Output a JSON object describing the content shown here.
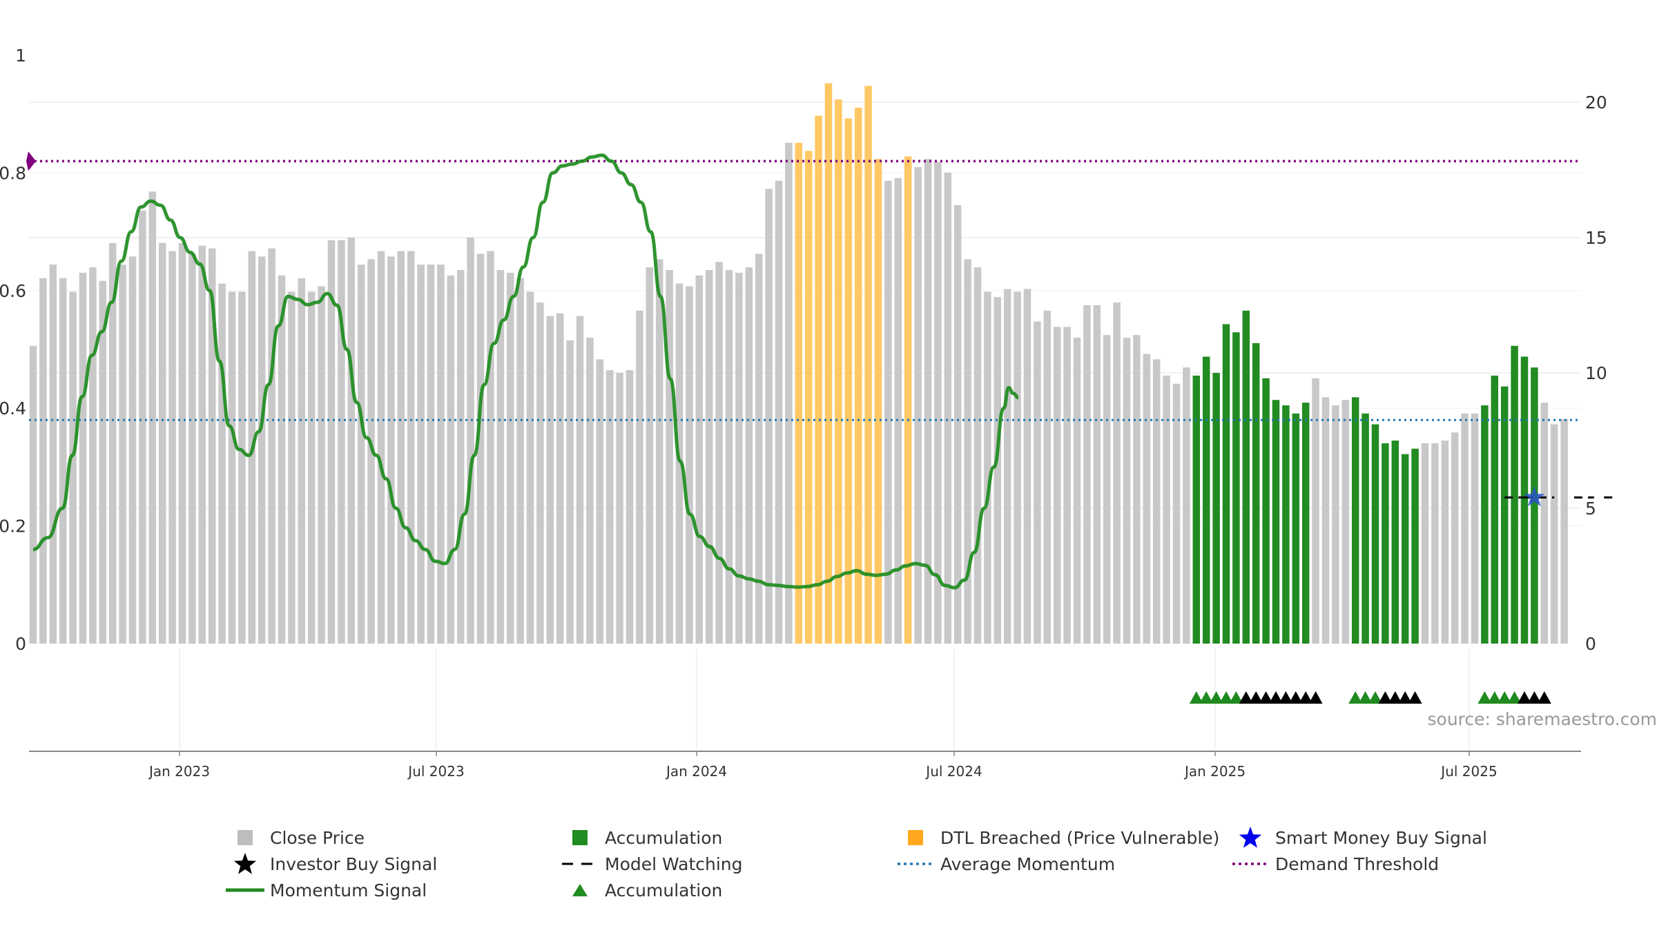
{
  "chart_data": {
    "type": "bar",
    "source_text": "source: sharemaestro.com",
    "x_ticks": [
      "Jan 2023",
      "Jul 2023",
      "Jan 2024",
      "Jul 2024",
      "Jan 2025",
      "Jul 2025"
    ],
    "left_axis": {
      "ticks": [
        "0",
        "0.2",
        "0.4",
        "0.6",
        "0.8",
        "1"
      ],
      "ylim": [
        0,
        1
      ]
    },
    "right_axis": {
      "ticks": [
        "0",
        "5",
        "10",
        "15",
        "20"
      ],
      "ylim": [
        0,
        20
      ]
    },
    "bars": {
      "name": "Close Price",
      "values": [
        11.0,
        13.5,
        14.0,
        13.5,
        13.0,
        13.7,
        13.9,
        13.4,
        14.8,
        14.0,
        14.3,
        16.0,
        16.7,
        14.8,
        14.5,
        14.8,
        14.4,
        14.7,
        14.6,
        13.3,
        13.0,
        13.0,
        14.5,
        14.3,
        14.6,
        13.6,
        13.0,
        13.5,
        13.0,
        13.2,
        14.9,
        14.9,
        15.0,
        14.0,
        14.2,
        14.5,
        14.3,
        14.5,
        14.5,
        14.0,
        14.0,
        14.0,
        13.6,
        13.8,
        15.0,
        14.4,
        14.5,
        13.8,
        13.7,
        13.5,
        13.0,
        12.6,
        12.1,
        12.2,
        11.2,
        12.1,
        11.3,
        10.5,
        10.1,
        10.0,
        10.1,
        12.3,
        13.9,
        14.2,
        13.8,
        13.3,
        13.2,
        13.6,
        13.8,
        14.1,
        13.8,
        13.7,
        13.9,
        14.4,
        16.8,
        17.1,
        18.5,
        18.5,
        18.2,
        19.5,
        20.7,
        20.1,
        19.4,
        19.8,
        20.6,
        17.9,
        17.1,
        17.2,
        18.0,
        17.6,
        17.9,
        17.8,
        17.4,
        16.2,
        14.2,
        13.9,
        13.0,
        12.8,
        13.1,
        13.0,
        13.1,
        11.9,
        12.3,
        11.7,
        11.7,
        11.3,
        12.5,
        12.5,
        11.4,
        12.6,
        11.3,
        11.4,
        10.7,
        10.5,
        9.9,
        9.6,
        10.2,
        9.9,
        10.6,
        10.0,
        11.8,
        11.5,
        12.3,
        11.1,
        9.8,
        9.0,
        8.8,
        8.5,
        8.9,
        9.8,
        9.1,
        8.8,
        9.0,
        9.1,
        8.5,
        8.1,
        7.4,
        7.5,
        7.0,
        7.2,
        7.4,
        7.4,
        7.5,
        7.8,
        8.5,
        8.5,
        8.8,
        9.9,
        9.5,
        11.0,
        10.6,
        10.2,
        8.9,
        8.1,
        8.3
      ],
      "colors_by_index_ranges": [
        {
          "from": 77,
          "to": 85,
          "color": "#ffc864",
          "name": "DTL Breached (Price Vulnerable)"
        },
        {
          "from": 88,
          "to": 88,
          "color": "#ffc864",
          "name": "DTL Breached (Price Vulnerable)"
        },
        {
          "from": 117,
          "to": 128,
          "color": "#228b22",
          "name": "Accumulation"
        },
        {
          "from": 133,
          "to": 139,
          "color": "#228b22",
          "name": "Accumulation"
        },
        {
          "from": 146,
          "to": 151,
          "color": "#228b22",
          "name": "Accumulation"
        }
      ]
    },
    "momentum": {
      "name": "Momentum Signal",
      "points": [
        [
          0,
          0.16
        ],
        [
          3,
          0.18
        ],
        [
          6,
          0.23
        ],
        [
          8,
          0.32
        ],
        [
          10,
          0.42
        ],
        [
          12,
          0.49
        ],
        [
          14,
          0.53
        ],
        [
          16,
          0.58
        ],
        [
          18,
          0.65
        ],
        [
          20,
          0.7
        ],
        [
          22,
          0.742
        ],
        [
          24,
          0.752
        ],
        [
          26,
          0.745
        ],
        [
          28,
          0.72
        ],
        [
          30,
          0.69
        ],
        [
          32,
          0.665
        ],
        [
          34,
          0.645
        ],
        [
          36,
          0.6
        ],
        [
          38,
          0.48
        ],
        [
          40,
          0.37
        ],
        [
          42,
          0.33
        ],
        [
          44,
          0.32
        ],
        [
          46,
          0.36
        ],
        [
          48,
          0.44
        ],
        [
          50,
          0.54
        ],
        [
          52,
          0.59
        ],
        [
          54,
          0.585
        ],
        [
          56,
          0.576
        ],
        [
          58,
          0.58
        ],
        [
          60,
          0.595
        ],
        [
          62,
          0.575
        ],
        [
          64,
          0.5
        ],
        [
          66,
          0.41
        ],
        [
          68,
          0.35
        ],
        [
          70,
          0.32
        ],
        [
          72,
          0.28
        ],
        [
          74,
          0.23
        ],
        [
          76,
          0.197
        ],
        [
          78,
          0.175
        ],
        [
          80,
          0.16
        ],
        [
          82,
          0.14
        ],
        [
          84,
          0.136
        ],
        [
          86,
          0.16
        ],
        [
          88,
          0.22
        ],
        [
          90,
          0.32
        ],
        [
          92,
          0.44
        ],
        [
          94,
          0.51
        ],
        [
          96,
          0.55
        ],
        [
          98,
          0.59
        ],
        [
          100,
          0.64
        ],
        [
          102,
          0.69
        ],
        [
          104,
          0.75
        ],
        [
          106,
          0.8
        ],
        [
          108,
          0.812
        ],
        [
          110,
          0.815
        ],
        [
          112,
          0.82
        ],
        [
          114,
          0.827
        ],
        [
          116,
          0.83
        ],
        [
          118,
          0.82
        ],
        [
          120,
          0.8
        ],
        [
          122,
          0.78
        ],
        [
          124,
          0.75
        ],
        [
          126,
          0.7
        ],
        [
          128,
          0.59
        ],
        [
          130,
          0.45
        ],
        [
          132,
          0.31
        ],
        [
          134,
          0.22
        ],
        [
          136,
          0.182
        ],
        [
          138,
          0.165
        ],
        [
          140,
          0.145
        ],
        [
          142,
          0.127
        ],
        [
          144,
          0.115
        ],
        [
          146,
          0.11
        ],
        [
          148,
          0.106
        ],
        [
          150,
          0.1
        ],
        [
          152,
          0.099
        ],
        [
          154,
          0.097
        ],
        [
          156,
          0.096
        ],
        [
          158,
          0.097
        ],
        [
          160,
          0.1
        ],
        [
          162,
          0.106
        ],
        [
          164,
          0.114
        ],
        [
          166,
          0.12
        ],
        [
          168,
          0.124
        ],
        [
          170,
          0.118
        ],
        [
          172,
          0.116
        ],
        [
          174,
          0.118
        ],
        [
          176,
          0.125
        ],
        [
          178,
          0.132
        ],
        [
          180,
          0.136
        ],
        [
          182,
          0.133
        ],
        [
          184,
          0.117
        ],
        [
          186,
          0.099
        ],
        [
          188,
          0.095
        ],
        [
          190,
          0.108
        ],
        [
          192,
          0.155
        ],
        [
          194,
          0.23
        ],
        [
          196,
          0.3
        ],
        [
          198,
          0.4
        ],
        [
          199,
          0.435
        ],
        [
          200,
          0.425
        ],
        [
          201,
          0.418
        ]
      ],
      "note": ""
    },
    "demand_threshold": {
      "name": "Demand Threshold",
      "value": 0.82
    },
    "average_momentum": {
      "name": "Average Momentum",
      "value": 0.38
    },
    "accumulation_triangles": {
      "green": [
        [
          117,
          121
        ],
        [
          133,
          135
        ],
        [
          146,
          149
        ]
      ],
      "black": [
        [
          122,
          129
        ],
        [
          136,
          139
        ],
        [
          150,
          152
        ]
      ]
    },
    "model_watching": {
      "name": "Model Watching",
      "y_value": 5.4,
      "segments": [
        [
          148,
          150
        ],
        [
          150,
          153
        ],
        [
          155,
          157
        ],
        [
          158,
          159
        ]
      ]
    },
    "smart_money_star": {
      "name": "Smart Money Buy Signal",
      "index": 151,
      "y_value": 5.4
    }
  },
  "legend": [
    {
      "label": "Close Price",
      "swatch": "square",
      "color": "#bdbdbd"
    },
    {
      "label": "Accumulation",
      "swatch": "square",
      "color": "#228b22"
    },
    {
      "label": "DTL Breached (Price Vulnerable)",
      "swatch": "square",
      "color": "#ffa81f"
    },
    {
      "label": "Smart Money Buy Signal",
      "swatch": "star",
      "color": "#0000ee"
    },
    {
      "label": "Investor Buy Signal",
      "swatch": "star",
      "color": "#000000"
    },
    {
      "label": "Model Watching",
      "swatch": "dash",
      "color": "#000000"
    },
    {
      "label": "Average Momentum",
      "swatch": "dotted",
      "color": "#1f77b4"
    },
    {
      "label": "Demand Threshold",
      "swatch": "dotted",
      "color": "#800080"
    },
    {
      "label": "Momentum Signal",
      "swatch": "line",
      "color": "#228b22"
    },
    {
      "label": "Accumulation",
      "swatch": "triangle",
      "color": "#228b22"
    }
  ]
}
